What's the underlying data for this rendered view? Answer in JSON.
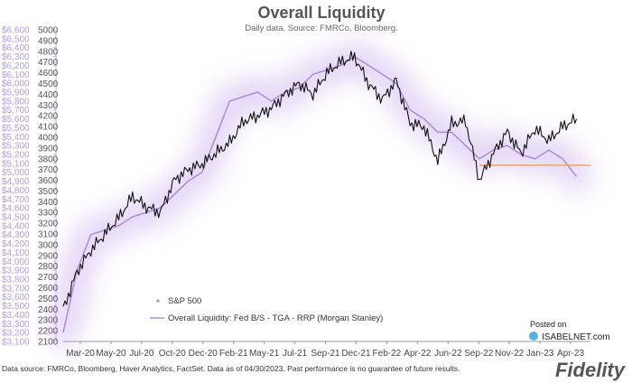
{
  "chart_data": {
    "type": "line",
    "title": "Overall Liquidity",
    "subtitle": "Daily data.  Source: FMRCo, Bloomberg.",
    "x_tick_labels": [
      "Mar-20",
      "May-20",
      "Jul-20",
      "Oct-20",
      "Dec-20",
      "Feb-21",
      "May-21",
      "Jul-21",
      "Sep-21",
      "Dec-21",
      "Feb-22",
      "Apr-22",
      "Jun-22",
      "Sep-22",
      "Nov-22",
      "Jan-23",
      "Apr-23"
    ],
    "x_range": [
      "2020-03",
      "2023-05"
    ],
    "y_left": {
      "range": [
        3100,
        6600
      ],
      "ticks": [
        "$3,100",
        "$3,200",
        "$3,300",
        "$3,400",
        "$3,500",
        "$3,600",
        "$3,700",
        "$3,800",
        "$3,900",
        "$4,000",
        "$4,100",
        "$4,200",
        "$4,300",
        "$4,400",
        "$4,500",
        "$4,600",
        "$4,700",
        "$4,800",
        "$4,900",
        "$5,000",
        "$5,100",
        "$5,200",
        "$5,300",
        "$5,400",
        "$5,500",
        "$5,600",
        "$5,700",
        "$5,800",
        "$5,900",
        "$6,000",
        "$6,100",
        "$6,200",
        "$6,300",
        "$6,400",
        "$6,500",
        "$6,600"
      ]
    },
    "y_right": {
      "range": [
        2100,
        5000
      ],
      "ticks": [
        "2100",
        "2200",
        "2300",
        "2400",
        "2500",
        "2600",
        "2700",
        "2800",
        "2900",
        "3000",
        "3100",
        "3200",
        "3300",
        "3400",
        "3500",
        "3600",
        "3700",
        "3800",
        "3900",
        "4000",
        "4100",
        "4200",
        "4300",
        "4400",
        "4500",
        "4600",
        "4700",
        "4800",
        "4900",
        "5000"
      ]
    },
    "series": [
      {
        "name": "S&P 500",
        "axis": "right",
        "color": "#111111",
        "points": [
          [
            "2020-03",
            2400
          ],
          [
            "2020-04",
            2750
          ],
          [
            "2020-05",
            2950
          ],
          [
            "2020-06",
            3100
          ],
          [
            "2020-07",
            3250
          ],
          [
            "2020-08",
            3450
          ],
          [
            "2020-09",
            3350
          ],
          [
            "2020-10",
            3300
          ],
          [
            "2020-11",
            3600
          ],
          [
            "2020-12",
            3700
          ],
          [
            "2021-01",
            3750
          ],
          [
            "2021-02",
            3850
          ],
          [
            "2021-03",
            3950
          ],
          [
            "2021-04",
            4150
          ],
          [
            "2021-05",
            4200
          ],
          [
            "2021-06",
            4270
          ],
          [
            "2021-07",
            4400
          ],
          [
            "2021-08",
            4500
          ],
          [
            "2021-09",
            4400
          ],
          [
            "2021-10",
            4600
          ],
          [
            "2021-11",
            4700
          ],
          [
            "2021-12",
            4750
          ],
          [
            "2022-01",
            4500
          ],
          [
            "2022-02",
            4350
          ],
          [
            "2022-03",
            4530
          ],
          [
            "2022-04",
            4130
          ],
          [
            "2022-05",
            4100
          ],
          [
            "2022-06",
            3780
          ],
          [
            "2022-07",
            4130
          ],
          [
            "2022-08",
            4150
          ],
          [
            "2022-09",
            3600
          ],
          [
            "2022-10",
            3850
          ],
          [
            "2022-11",
            4050
          ],
          [
            "2022-12",
            3850
          ],
          [
            "2023-01",
            4080
          ],
          [
            "2023-02",
            3970
          ],
          [
            "2023-03",
            4100
          ],
          [
            "2023-04",
            4170
          ]
        ]
      },
      {
        "name": "Overall Liquidity: Fed B/S - TGA - RRP (Morgan Stanley)",
        "axis": "left",
        "color": "#b08ad8",
        "points": [
          [
            "2020-03",
            3200
          ],
          [
            "2020-04",
            3900
          ],
          [
            "2020-05",
            4300
          ],
          [
            "2020-06",
            4350
          ],
          [
            "2020-07",
            4400
          ],
          [
            "2020-08",
            4500
          ],
          [
            "2020-09",
            4550
          ],
          [
            "2020-10",
            4600
          ],
          [
            "2020-11",
            4750
          ],
          [
            "2020-12",
            4900
          ],
          [
            "2021-01",
            5000
          ],
          [
            "2021-02",
            5400
          ],
          [
            "2021-03",
            5800
          ],
          [
            "2021-04",
            5850
          ],
          [
            "2021-05",
            5900
          ],
          [
            "2021-06",
            5800
          ],
          [
            "2021-07",
            5900
          ],
          [
            "2021-08",
            5950
          ],
          [
            "2021-09",
            6100
          ],
          [
            "2021-10",
            6150
          ],
          [
            "2021-11",
            6200
          ],
          [
            "2021-12",
            6300
          ],
          [
            "2022-01",
            6200
          ],
          [
            "2022-02",
            6100
          ],
          [
            "2022-03",
            6000
          ],
          [
            "2022-04",
            5700
          ],
          [
            "2022-05",
            5600
          ],
          [
            "2022-06",
            5450
          ],
          [
            "2022-07",
            5450
          ],
          [
            "2022-08",
            5300
          ],
          [
            "2022-09",
            5150
          ],
          [
            "2022-10",
            5250
          ],
          [
            "2022-11",
            5300
          ],
          [
            "2022-12",
            5200
          ],
          [
            "2023-01",
            5150
          ],
          [
            "2023-02",
            5250
          ],
          [
            "2023-03",
            5150
          ],
          [
            "2023-04",
            4950
          ]
        ]
      }
    ],
    "reference_line": {
      "axis": "right",
      "value": 3740,
      "from": "2022-09",
      "to": "2023-05",
      "color": "#f0a050"
    },
    "legend_position": "bottom-left",
    "grid": false
  },
  "footer": "Data source: FMRCo, Bloomberg, Haver Analytics, FactSet. Data as of 04/30/2023. Past performance is no guarantee of future results.",
  "watermark": {
    "posted": "Posted on",
    "site": "ISABELNET.com"
  },
  "logo": {
    "text": "Fidelity"
  },
  "colors": {
    "liquidity": "#b08ad8",
    "sp500": "#111111",
    "reference": "#f0a050",
    "left_axis_text": "#b59ad8"
  }
}
